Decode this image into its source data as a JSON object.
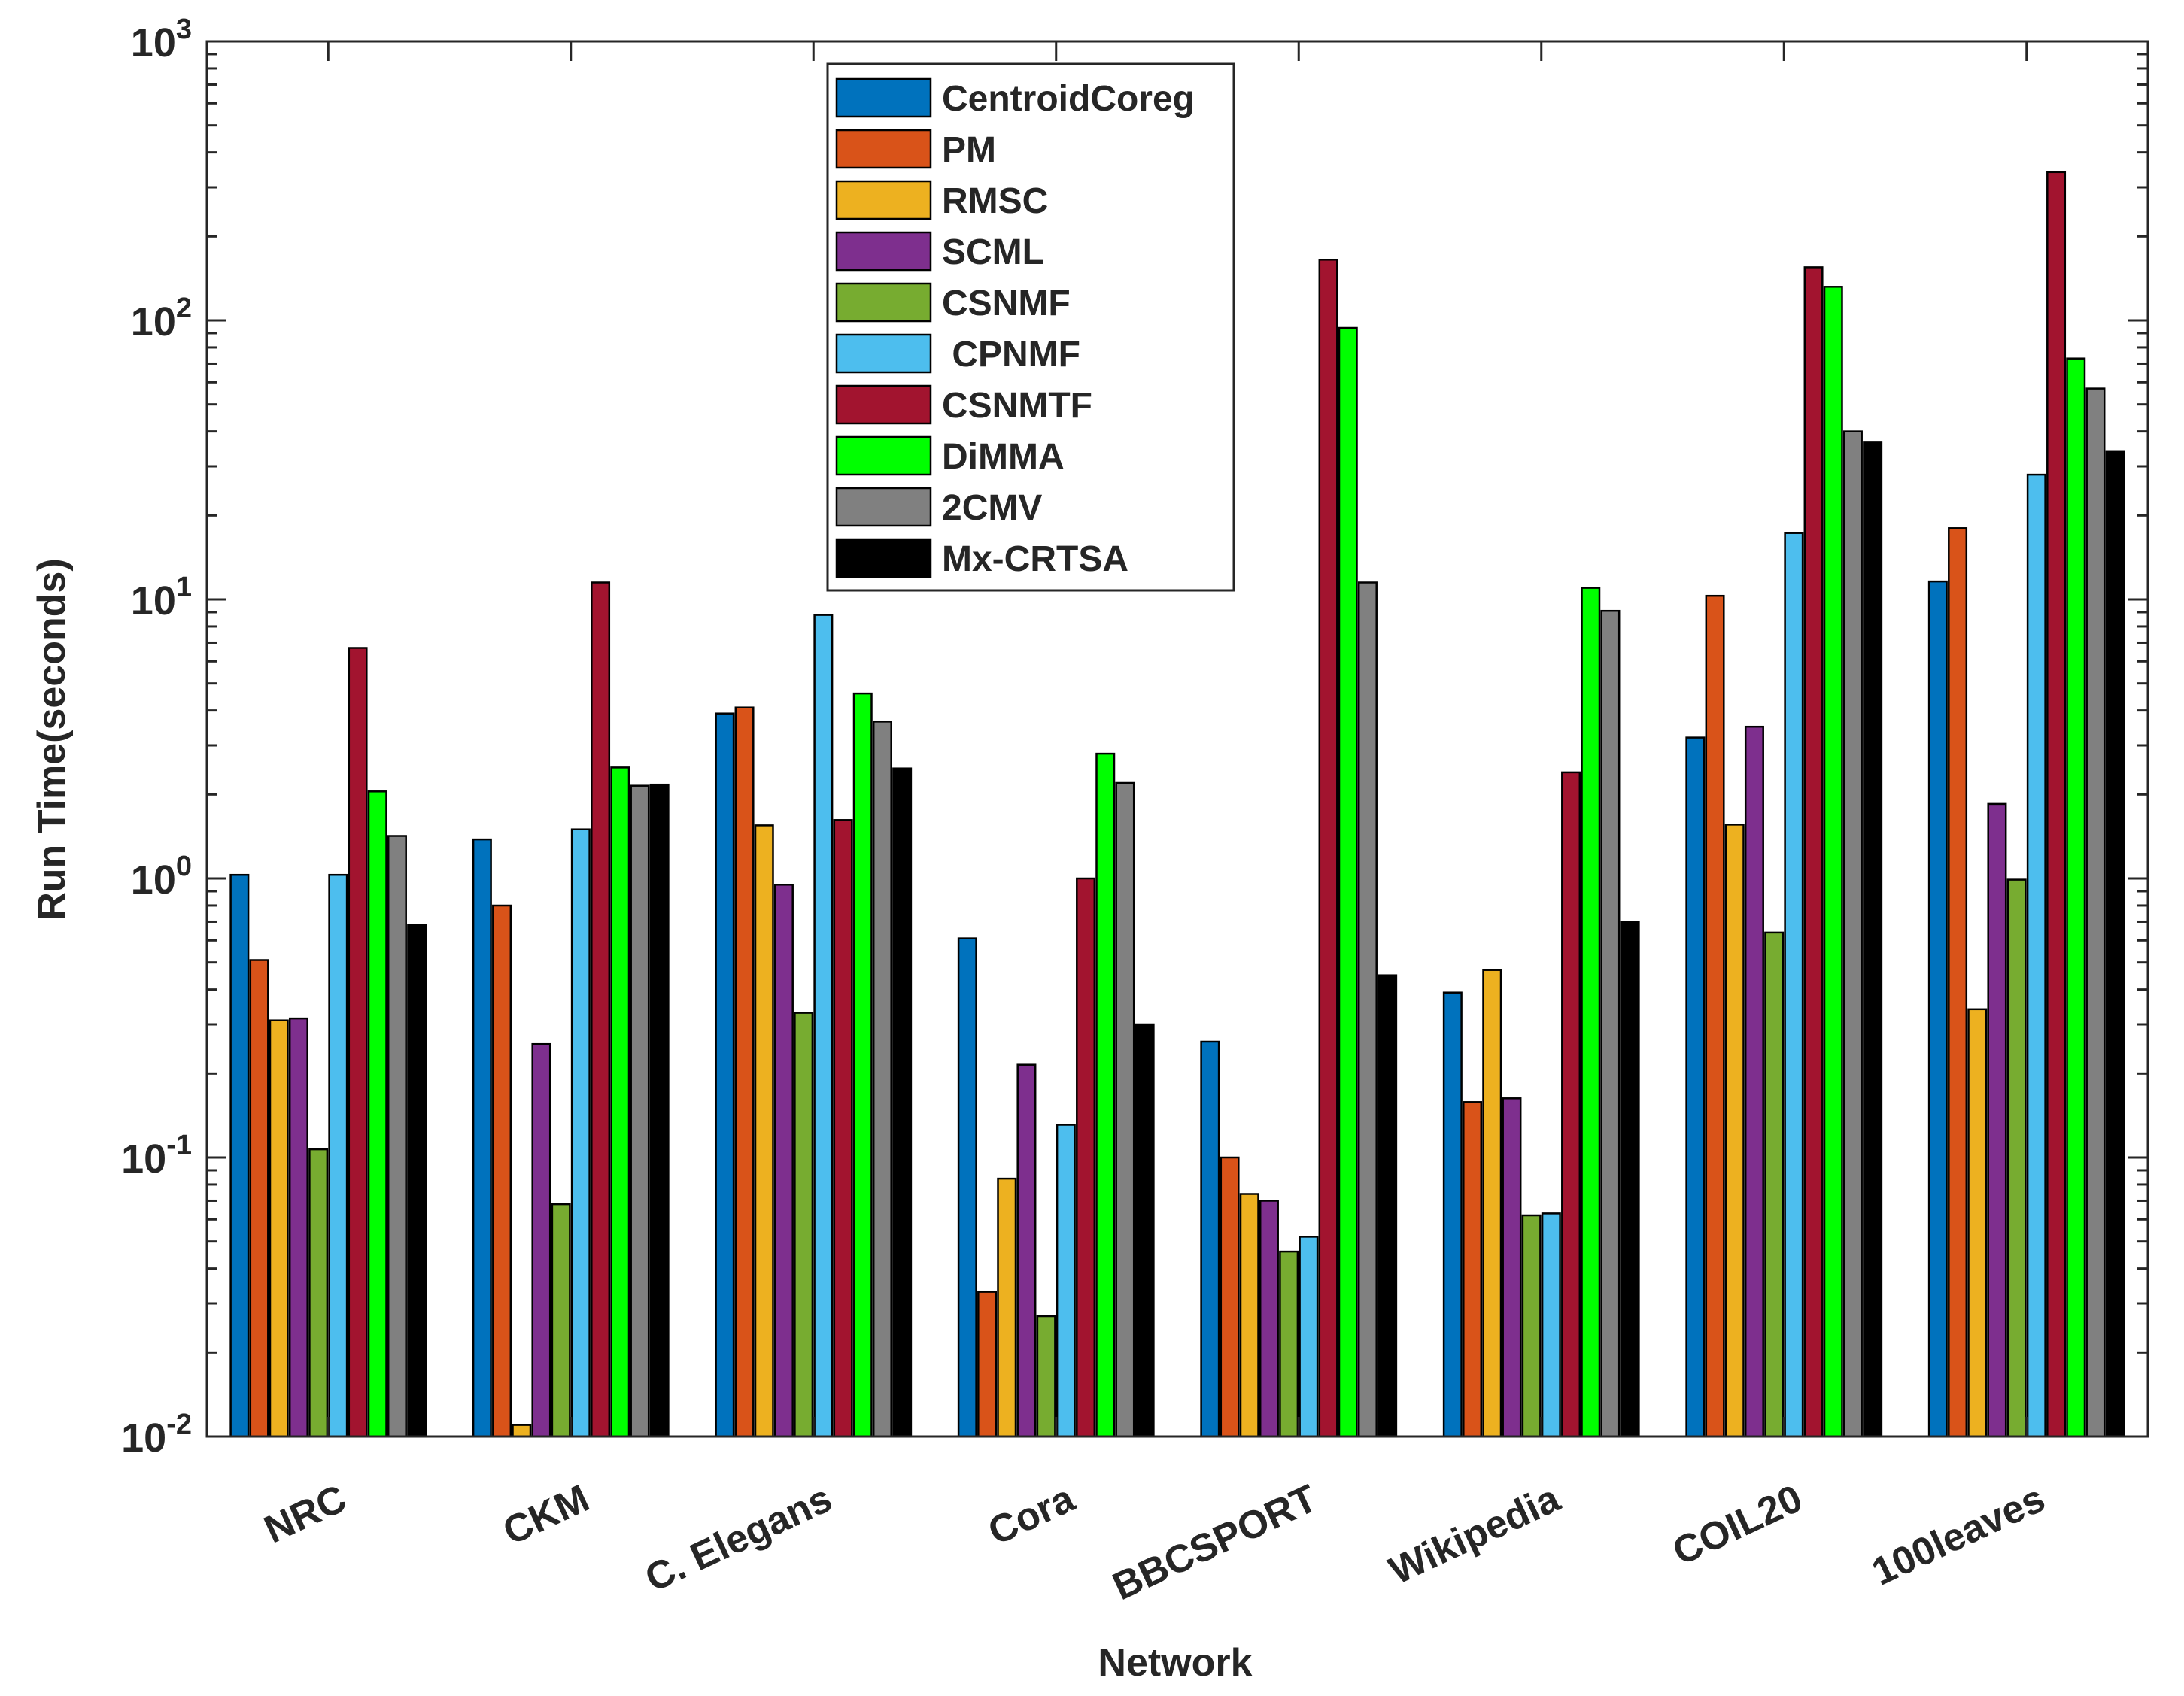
{
  "chart_data": {
    "type": "bar",
    "scale": "log",
    "title": "",
    "xlabel": "Network",
    "ylabel": "Run Time(seconds)",
    "ylim": [
      0.01,
      1000
    ],
    "yticks": [
      {
        "value": 0.01,
        "base": "10",
        "exp": "-2"
      },
      {
        "value": 0.1,
        "base": "10",
        "exp": "-1"
      },
      {
        "value": 1,
        "base": "10",
        "exp": "0"
      },
      {
        "value": 10,
        "base": "10",
        "exp": "1"
      },
      {
        "value": 100,
        "base": "10",
        "exp": "2"
      },
      {
        "value": 1000,
        "base": "10",
        "exp": "3"
      }
    ],
    "grid": false,
    "legend_position": "top-center",
    "categories": [
      "NRC",
      "CKM",
      "C. Elegans",
      "Cora",
      "BBCSPORT",
      "Wikipedia",
      "COIL20",
      "100leaves"
    ],
    "series": [
      {
        "name": "CentroidCoreg",
        "color": "#0072BD",
        "values": [
          1.03,
          1.38,
          3.9,
          0.61,
          0.26,
          0.39,
          3.2,
          11.6
        ]
      },
      {
        "name": "PM",
        "color": "#D95319",
        "values": [
          0.51,
          0.8,
          4.1,
          0.033,
          0.1,
          0.158,
          10.3,
          18.0
        ]
      },
      {
        "name": "RMSC",
        "color": "#EDB120",
        "values": [
          0.31,
          0.011,
          1.55,
          0.084,
          0.074,
          0.47,
          1.56,
          0.34
        ]
      },
      {
        "name": "SCML",
        "color": "#7E2F8E",
        "values": [
          0.315,
          0.255,
          0.95,
          0.215,
          0.07,
          0.163,
          3.5,
          1.85
        ]
      },
      {
        "name": "CSNMF",
        "color": "#77AC30",
        "values": [
          0.107,
          0.068,
          0.33,
          0.027,
          0.046,
          0.062,
          0.64,
          0.99
        ]
      },
      {
        "name": " CPNMF",
        "color": "#4DBEEE",
        "values": [
          1.03,
          1.5,
          8.8,
          0.131,
          0.052,
          0.063,
          17.3,
          28.0
        ]
      },
      {
        "name": "CSNMTF",
        "color": "#A2142F",
        "values": [
          6.7,
          11.5,
          1.62,
          1.0,
          165,
          2.4,
          155,
          340
        ]
      },
      {
        "name": "DiMMA",
        "color": "#00FF00",
        "values": [
          2.05,
          2.5,
          4.6,
          2.8,
          94,
          11.0,
          132,
          73
        ]
      },
      {
        "name": "2CMV",
        "color": "#808080",
        "values": [
          1.42,
          2.15,
          3.65,
          2.2,
          11.5,
          9.1,
          40,
          57
        ]
      },
      {
        "name": "Mx-CRTSA",
        "color": "#000000",
        "values": [
          0.68,
          2.17,
          2.48,
          0.3,
          0.45,
          0.7,
          36.5,
          34
        ]
      }
    ]
  }
}
